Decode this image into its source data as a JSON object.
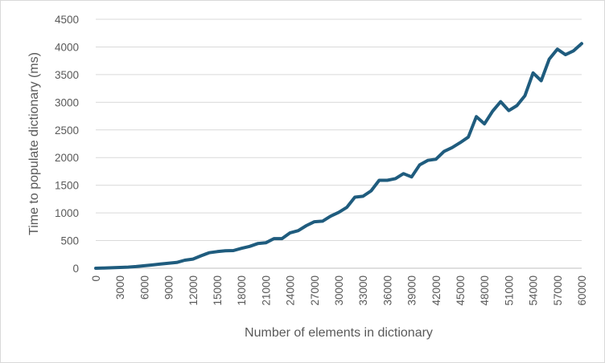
{
  "chart_data": {
    "type": "line",
    "title": "",
    "xlabel": "Number of elements in dictionary",
    "ylabel": "Time to populate dictionary (ms)",
    "xlim": [
      0,
      60000
    ],
    "ylim": [
      0,
      4500
    ],
    "y_ticks": [
      0,
      500,
      1000,
      1500,
      2000,
      2500,
      3000,
      3500,
      4000,
      4500
    ],
    "y_tick_labels": [
      "0",
      "500",
      "1000",
      "1500",
      "2000",
      "2500",
      "3000",
      "3500",
      "4000",
      "4500"
    ],
    "x_tick_labels": [
      "0",
      "3000",
      "6000",
      "9000",
      "12000",
      "15000",
      "18000",
      "21000",
      "24000",
      "27000",
      "30000",
      "33000",
      "36000",
      "39000",
      "42000",
      "45000",
      "48000",
      "51000",
      "54000",
      "57000",
      "60000"
    ],
    "grid": "horizontal",
    "legend": "none",
    "line_color": "#1f5c7e",
    "series": [
      {
        "x": [
          0,
          1000,
          2000,
          3000,
          4000,
          5000,
          6000,
          7000,
          8000,
          9000,
          10000,
          11000,
          12000,
          13000,
          14000,
          15000,
          16000,
          17000,
          18000,
          19000,
          20000,
          21000,
          22000,
          23000,
          24000,
          25000,
          26000,
          27000,
          28000,
          29000,
          30000,
          31000,
          32000,
          33000,
          34000,
          35000,
          36000,
          37000,
          38000,
          39000,
          40000,
          41000,
          42000,
          43000,
          44000,
          45000,
          46000,
          47000,
          48000,
          49000,
          50000,
          51000,
          52000,
          53000,
          54000,
          55000,
          56000,
          57000,
          58000,
          59000,
          60000
        ],
        "values": [
          0,
          5,
          8,
          15,
          20,
          30,
          45,
          60,
          75,
          90,
          105,
          145,
          165,
          225,
          280,
          300,
          315,
          320,
          360,
          395,
          445,
          460,
          535,
          535,
          640,
          680,
          770,
          840,
          850,
          940,
          1010,
          1100,
          1285,
          1300,
          1400,
          1590,
          1590,
          1620,
          1710,
          1650,
          1870,
          1950,
          1970,
          2110,
          2180,
          2270,
          2370,
          2740,
          2610,
          2840,
          3010,
          2850,
          2940,
          3120,
          3530,
          3390,
          3780,
          3960,
          3860,
          3930,
          4060
        ]
      }
    ]
  }
}
